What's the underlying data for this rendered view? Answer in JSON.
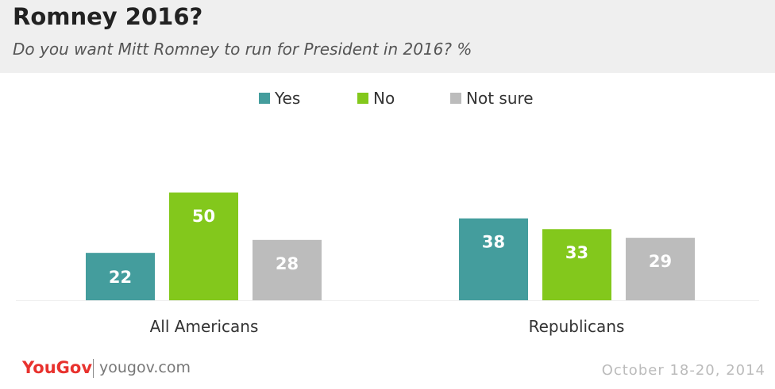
{
  "header": {
    "title": "Romney 2016?",
    "subtitle": "Do you want Mitt Romney to run for President in 2016? %"
  },
  "chart_data": {
    "type": "bar",
    "title": "Romney 2016?",
    "subtitle": "Do you want Mitt Romney to run for President in 2016? %",
    "categories": [
      "All Americans",
      "Republicans"
    ],
    "series": [
      {
        "name": "Yes",
        "color": "#449d9d",
        "values": [
          22,
          38
        ]
      },
      {
        "name": "No",
        "color": "#83c81c",
        "values": [
          50,
          33
        ]
      },
      {
        "name": "Not sure",
        "color": "#bcbcbc",
        "values": [
          28,
          29
        ]
      }
    ],
    "ylim": [
      0,
      50
    ],
    "grid": false,
    "legend": "top-center",
    "data_labels": true
  },
  "footer": {
    "brand_you": "YouGov",
    "url": "yougov.com",
    "date": "October 18-20, 2014"
  }
}
